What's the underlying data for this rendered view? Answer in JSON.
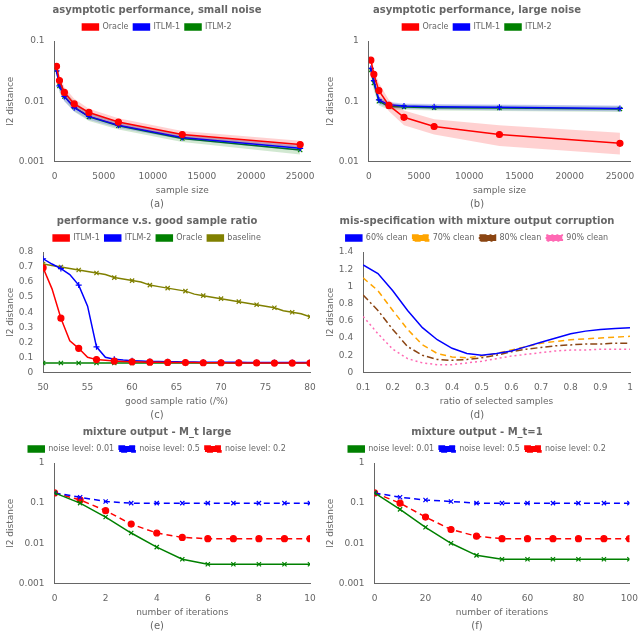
{
  "chart_data": [
    {
      "type": "line",
      "title": "asymptotic performance, small noise",
      "xlabel": "sample size",
      "ylabel": "l2 distance",
      "annotation": "(a)",
      "log": "y",
      "grid": false,
      "legend": "top",
      "x": [
        200,
        500,
        1000,
        2000,
        3500,
        6500,
        13000,
        25000
      ],
      "xlim": [
        0,
        26000
      ],
      "xticks": [
        0,
        5000,
        10000,
        15000,
        20000,
        25000
      ],
      "ylim": [
        0.001,
        0.1
      ],
      "yticks": [
        0.001,
        0.01,
        0.1
      ],
      "series": [
        {
          "name": "Oracle",
          "color": "#FF0000",
          "marker": "circle",
          "line_style": "solid",
          "values": [
            0.038,
            0.022,
            0.014,
            0.009,
            0.0065,
            0.0045,
            0.0028,
            0.0019
          ],
          "lower": [
            0.032,
            0.018,
            0.012,
            0.0078,
            0.0056,
            0.004,
            0.0025,
            0.0017
          ],
          "upper": [
            0.045,
            0.027,
            0.017,
            0.011,
            0.0075,
            0.0052,
            0.0032,
            0.0022
          ]
        },
        {
          "name": "ITLM-1",
          "color": "#0000FF",
          "marker": "plus",
          "line_style": "solid",
          "values": [
            0.032,
            0.018,
            0.012,
            0.0078,
            0.0056,
            0.004,
            0.0025,
            0.00165
          ],
          "lower": [
            0.028,
            0.015,
            0.01,
            0.0068,
            0.0049,
            0.0036,
            0.0023,
            0.0015
          ],
          "upper": [
            0.037,
            0.022,
            0.015,
            0.009,
            0.0064,
            0.0046,
            0.0028,
            0.0019
          ]
        },
        {
          "name": "ITLM-2",
          "color": "#008000",
          "marker": "x",
          "line_style": "solid",
          "values": [
            0.033,
            0.018,
            0.012,
            0.008,
            0.0055,
            0.0039,
            0.0024,
            0.00155
          ],
          "lower": [
            0.027,
            0.014,
            0.01,
            0.0067,
            0.0047,
            0.0034,
            0.0021,
            0.0013
          ],
          "upper": [
            0.04,
            0.023,
            0.015,
            0.01,
            0.0064,
            0.0045,
            0.0028,
            0.0018
          ]
        }
      ]
    },
    {
      "type": "line",
      "title": "asymptotic performance, large noise",
      "xlabel": "sample size",
      "ylabel": "l2 distance",
      "annotation": "(b)",
      "log": "y",
      "grid": false,
      "legend": "top",
      "x": [
        200,
        500,
        1000,
        2000,
        3500,
        6500,
        13000,
        25000
      ],
      "xlim": [
        0,
        26000
      ],
      "xticks": [
        0,
        5000,
        10000,
        15000,
        20000,
        25000
      ],
      "ylim": [
        0.01,
        1
      ],
      "yticks": [
        0.01,
        0.1,
        1
      ],
      "series": [
        {
          "name": "Oracle",
          "color": "#FF0000",
          "marker": "circle",
          "line_style": "solid",
          "values": [
            0.48,
            0.28,
            0.15,
            0.085,
            0.054,
            0.038,
            0.028,
            0.02
          ],
          "lower": [
            0.38,
            0.22,
            0.12,
            0.068,
            0.04,
            0.028,
            0.018,
            0.013
          ],
          "upper": [
            0.58,
            0.35,
            0.2,
            0.105,
            0.07,
            0.05,
            0.04,
            0.03
          ]
        },
        {
          "name": "ITLM-1",
          "color": "#0000FF",
          "marker": "plus",
          "line_style": "solid",
          "values": [
            0.35,
            0.22,
            0.105,
            0.087,
            0.083,
            0.081,
            0.079,
            0.076
          ],
          "lower": [
            0.28,
            0.17,
            0.09,
            0.078,
            0.075,
            0.073,
            0.071,
            0.068
          ],
          "upper": [
            0.43,
            0.28,
            0.12,
            0.097,
            0.092,
            0.09,
            0.088,
            0.085
          ]
        },
        {
          "name": "ITLM-2",
          "color": "#008000",
          "marker": "x",
          "line_style": "solid",
          "values": [
            0.33,
            0.2,
            0.1,
            0.082,
            0.08,
            0.078,
            0.077,
            0.074
          ],
          "lower": [
            0.26,
            0.15,
            0.085,
            0.072,
            0.072,
            0.07,
            0.069,
            0.066
          ],
          "upper": [
            0.41,
            0.26,
            0.115,
            0.093,
            0.089,
            0.087,
            0.086,
            0.083
          ]
        }
      ]
    },
    {
      "type": "line",
      "title": "performance v.s. good sample ratio",
      "xlabel": "good sample ratio (/%)",
      "ylabel": "l2 distance",
      "annotation": "(c)",
      "grid": false,
      "legend": "top",
      "x": [
        50,
        51,
        52,
        53,
        54,
        55,
        56,
        57,
        58,
        59,
        60,
        61,
        62,
        63,
        64,
        65,
        66,
        67,
        68,
        69,
        70,
        71,
        72,
        73,
        74,
        75,
        76,
        77,
        78,
        79,
        80
      ],
      "xlim": [
        50,
        80
      ],
      "xticks": [
        50,
        55,
        60,
        65,
        70,
        75,
        80
      ],
      "ylim": [
        0,
        0.8
      ],
      "yticks": [
        0,
        0.1,
        0.2,
        0.3,
        0.4,
        0.5,
        0.6,
        0.7,
        0.8
      ],
      "series": [
        {
          "name": "ITLM-1",
          "color": "#FF0000",
          "marker": "circle",
          "line_style": "solid",
          "values": [
            0.695,
            0.555,
            0.36,
            0.21,
            0.16,
            0.1,
            0.085,
            0.08,
            0.075,
            0.072,
            0.07,
            0.069,
            0.068,
            0.067,
            0.066,
            0.065,
            0.065,
            0.065,
            0.064,
            0.064,
            0.064,
            0.063,
            0.063,
            0.063,
            0.063,
            0.062,
            0.062,
            0.062,
            0.062,
            0.062,
            0.062
          ]
        },
        {
          "name": "ITLM-2",
          "color": "#0000FF",
          "marker": "plus",
          "line_style": "solid",
          "values": [
            0.755,
            0.72,
            0.69,
            0.65,
            0.58,
            0.44,
            0.17,
            0.1,
            0.088,
            0.082,
            0.078,
            0.075,
            0.073,
            0.072,
            0.071,
            0.07,
            0.069,
            0.069,
            0.068,
            0.068,
            0.067,
            0.067,
            0.067,
            0.066,
            0.066,
            0.066,
            0.065,
            0.065,
            0.065,
            0.065,
            0.065
          ]
        },
        {
          "name": "Oracle",
          "color": "#008000",
          "marker": "x",
          "line_style": "solid",
          "values": [
            0.062,
            0.062,
            0.062,
            0.062,
            0.062,
            0.062,
            0.062,
            0.062,
            0.062,
            0.062,
            0.062,
            0.062,
            0.062,
            0.062,
            0.062,
            0.062,
            0.062,
            0.062,
            0.062,
            0.062,
            0.062,
            0.062,
            0.062,
            0.062,
            0.062,
            0.062,
            0.062,
            0.062,
            0.062,
            0.062,
            0.062
          ]
        },
        {
          "name": "baseline",
          "color": "#808000",
          "marker": "x",
          "line_style": "solid",
          "values": [
            0.72,
            0.71,
            0.7,
            0.69,
            0.68,
            0.67,
            0.66,
            0.65,
            0.63,
            0.62,
            0.61,
            0.6,
            0.58,
            0.57,
            0.56,
            0.55,
            0.54,
            0.52,
            0.51,
            0.5,
            0.49,
            0.48,
            0.47,
            0.46,
            0.45,
            0.44,
            0.43,
            0.41,
            0.4,
            0.39,
            0.37
          ]
        }
      ]
    },
    {
      "type": "line",
      "title": "mis-specification with mixture output corruption",
      "xlabel": "ratio of selected samples",
      "ylabel": "l2 distance",
      "annotation": "(d)",
      "grid": false,
      "legend": "top",
      "x": [
        0.1,
        0.15,
        0.2,
        0.25,
        0.3,
        0.35,
        0.4,
        0.45,
        0.5,
        0.55,
        0.6,
        0.65,
        0.7,
        0.75,
        0.8,
        0.85,
        0.9,
        0.95,
        1.0
      ],
      "xlim": [
        0.1,
        1.0
      ],
      "xticks": [
        0.1,
        0.2,
        0.3,
        0.4,
        0.5,
        0.6,
        0.7,
        0.8,
        0.9,
        1.0
      ],
      "ylim": [
        0,
        1.4
      ],
      "yticks": [
        0,
        0.2,
        0.4,
        0.6,
        0.8,
        1.0,
        1.2,
        1.4
      ],
      "series": [
        {
          "name": "60% clean",
          "color": "#0000FF",
          "line_style": "solid",
          "values": [
            1.25,
            1.15,
            0.95,
            0.72,
            0.52,
            0.38,
            0.28,
            0.22,
            0.2,
            0.22,
            0.25,
            0.3,
            0.35,
            0.4,
            0.45,
            0.48,
            0.5,
            0.51,
            0.52
          ]
        },
        {
          "name": "70% clean",
          "color": "#FFA500",
          "line_style": "dashed",
          "values": [
            1.1,
            0.95,
            0.72,
            0.5,
            0.32,
            0.22,
            0.18,
            0.17,
            0.19,
            0.22,
            0.26,
            0.3,
            0.34,
            0.36,
            0.38,
            0.39,
            0.4,
            0.41,
            0.42
          ]
        },
        {
          "name": "80% clean",
          "color": "#8B4513",
          "line_style": "dashdot",
          "values": [
            0.9,
            0.72,
            0.5,
            0.3,
            0.2,
            0.15,
            0.14,
            0.15,
            0.17,
            0.2,
            0.24,
            0.27,
            0.29,
            0.31,
            0.32,
            0.33,
            0.33,
            0.34,
            0.34
          ]
        },
        {
          "name": "90% clean",
          "color": "#FF69B4",
          "line_style": "dotted",
          "values": [
            0.65,
            0.45,
            0.27,
            0.16,
            0.11,
            0.09,
            0.09,
            0.11,
            0.13,
            0.16,
            0.19,
            0.21,
            0.23,
            0.25,
            0.26,
            0.26,
            0.27,
            0.27,
            0.27
          ]
        }
      ]
    },
    {
      "type": "line",
      "title": "mixture output - M_t large",
      "xlabel": "number of iterations",
      "ylabel": "l2 distance",
      "annotation": "(e)",
      "log": "y",
      "grid": false,
      "legend": "top",
      "x": [
        0,
        1,
        2,
        3,
        4,
        5,
        6,
        7,
        8,
        9,
        10
      ],
      "xlim": [
        0,
        10
      ],
      "xticks": [
        0,
        2,
        4,
        6,
        8,
        10
      ],
      "ylim": [
        0.001,
        1
      ],
      "yticks": [
        0.001,
        0.01,
        0.1,
        1
      ],
      "series": [
        {
          "name": "noise level: 0.01",
          "color": "#008000",
          "marker": "x",
          "line_style": "solid",
          "values": [
            0.18,
            0.1,
            0.045,
            0.018,
            0.008,
            0.004,
            0.003,
            0.003,
            0.003,
            0.003,
            0.003
          ]
        },
        {
          "name": "noise level: 0.5",
          "color": "#0000FF",
          "marker": "x",
          "line_style": "dashed",
          "values": [
            0.18,
            0.14,
            0.11,
            0.1,
            0.1,
            0.1,
            0.1,
            0.1,
            0.1,
            0.1,
            0.1
          ]
        },
        {
          "name": "noise level: 0.2",
          "color": "#FF0000",
          "marker": "circle",
          "line_style": "dashed",
          "values": [
            0.18,
            0.12,
            0.065,
            0.03,
            0.018,
            0.014,
            0.013,
            0.013,
            0.013,
            0.013,
            0.013
          ]
        }
      ]
    },
    {
      "type": "line",
      "title": "mixture output - M_t=1",
      "xlabel": "number of iterations",
      "ylabel": "l2 distance",
      "annotation": "(f)",
      "log": "y",
      "grid": false,
      "legend": "top",
      "x": [
        0,
        10,
        20,
        30,
        40,
        50,
        60,
        70,
        80,
        90,
        100
      ],
      "xlim": [
        0,
        100
      ],
      "xticks": [
        0,
        20,
        40,
        60,
        80,
        100
      ],
      "ylim": [
        0.001,
        1
      ],
      "yticks": [
        0.001,
        0.01,
        0.1,
        1
      ],
      "series": [
        {
          "name": "noise level: 0.01",
          "color": "#008000",
          "marker": "x",
          "line_style": "solid",
          "values": [
            0.18,
            0.07,
            0.025,
            0.01,
            0.005,
            0.004,
            0.004,
            0.004,
            0.004,
            0.004,
            0.004
          ]
        },
        {
          "name": "noise level: 0.5",
          "color": "#0000FF",
          "marker": "x",
          "line_style": "dashed",
          "values": [
            0.18,
            0.14,
            0.12,
            0.11,
            0.1,
            0.1,
            0.1,
            0.1,
            0.1,
            0.1,
            0.1
          ]
        },
        {
          "name": "noise level: 0.2",
          "color": "#FF0000",
          "marker": "circle",
          "line_style": "dashed",
          "values": [
            0.18,
            0.1,
            0.045,
            0.022,
            0.015,
            0.013,
            0.013,
            0.013,
            0.013,
            0.013,
            0.013
          ]
        }
      ]
    }
  ]
}
